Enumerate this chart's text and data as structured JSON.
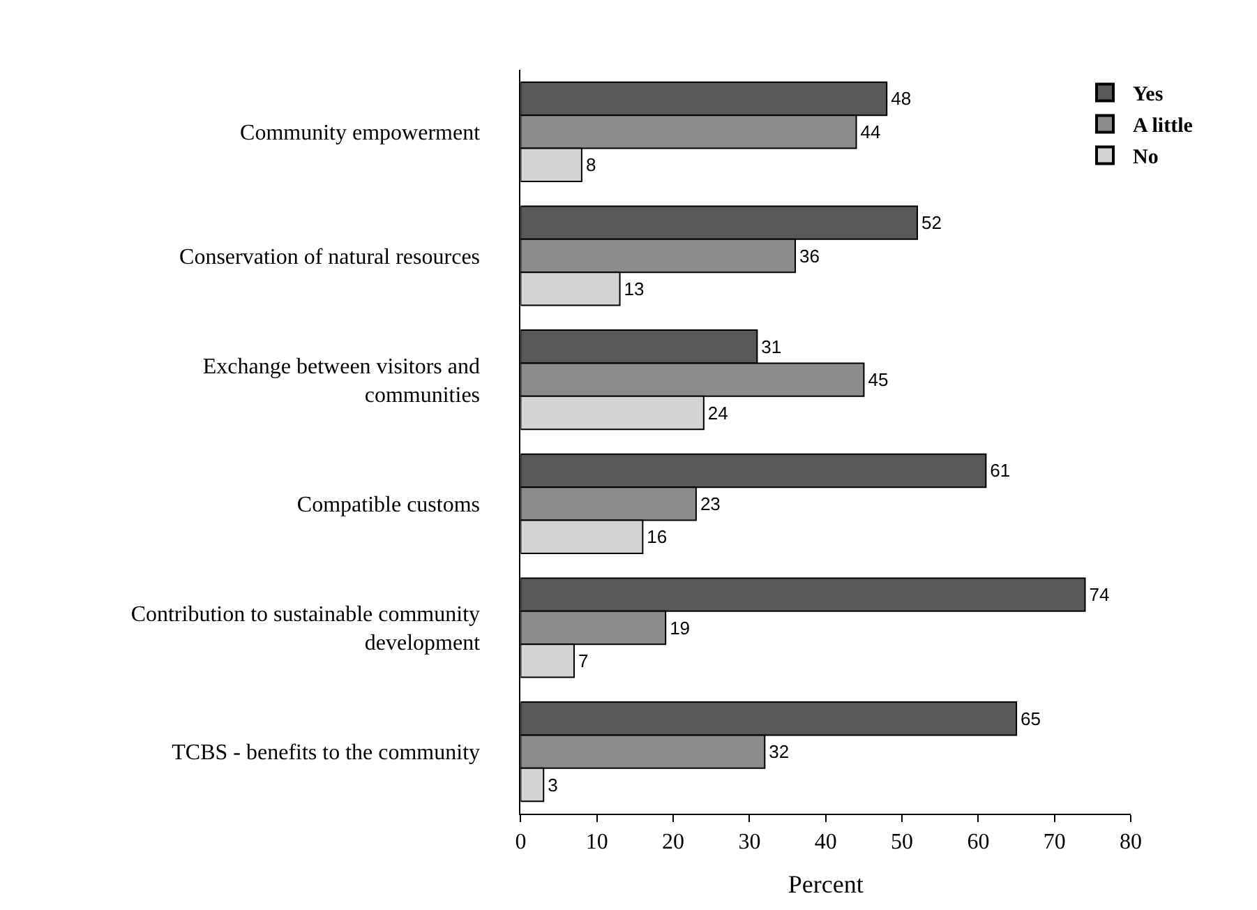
{
  "chart_data": {
    "type": "bar",
    "orientation": "horizontal",
    "xlabel": "Percent",
    "categories": [
      "Community empowerment",
      "Conservation of natural resources",
      "Exchange between visitors and\ncommunities",
      "Compatible customs",
      "Contribution to sustainable community\ndevelopment",
      "TCBS - benefits to the community"
    ],
    "series": [
      {
        "name": "Yes",
        "color": "#595959",
        "values": [
          48,
          52,
          31,
          61,
          74,
          65
        ]
      },
      {
        "name": "A little",
        "color": "#8c8c8c",
        "values": [
          44,
          36,
          45,
          23,
          19,
          32
        ]
      },
      {
        "name": "No",
        "color": "#d4d4d4",
        "values": [
          8,
          13,
          24,
          16,
          7,
          3
        ]
      }
    ],
    "xlim": [
      0,
      80
    ],
    "xticks": [
      0,
      10,
      20,
      30,
      40,
      50,
      60,
      70,
      80
    ],
    "data_labels": true,
    "legend": "top right"
  }
}
